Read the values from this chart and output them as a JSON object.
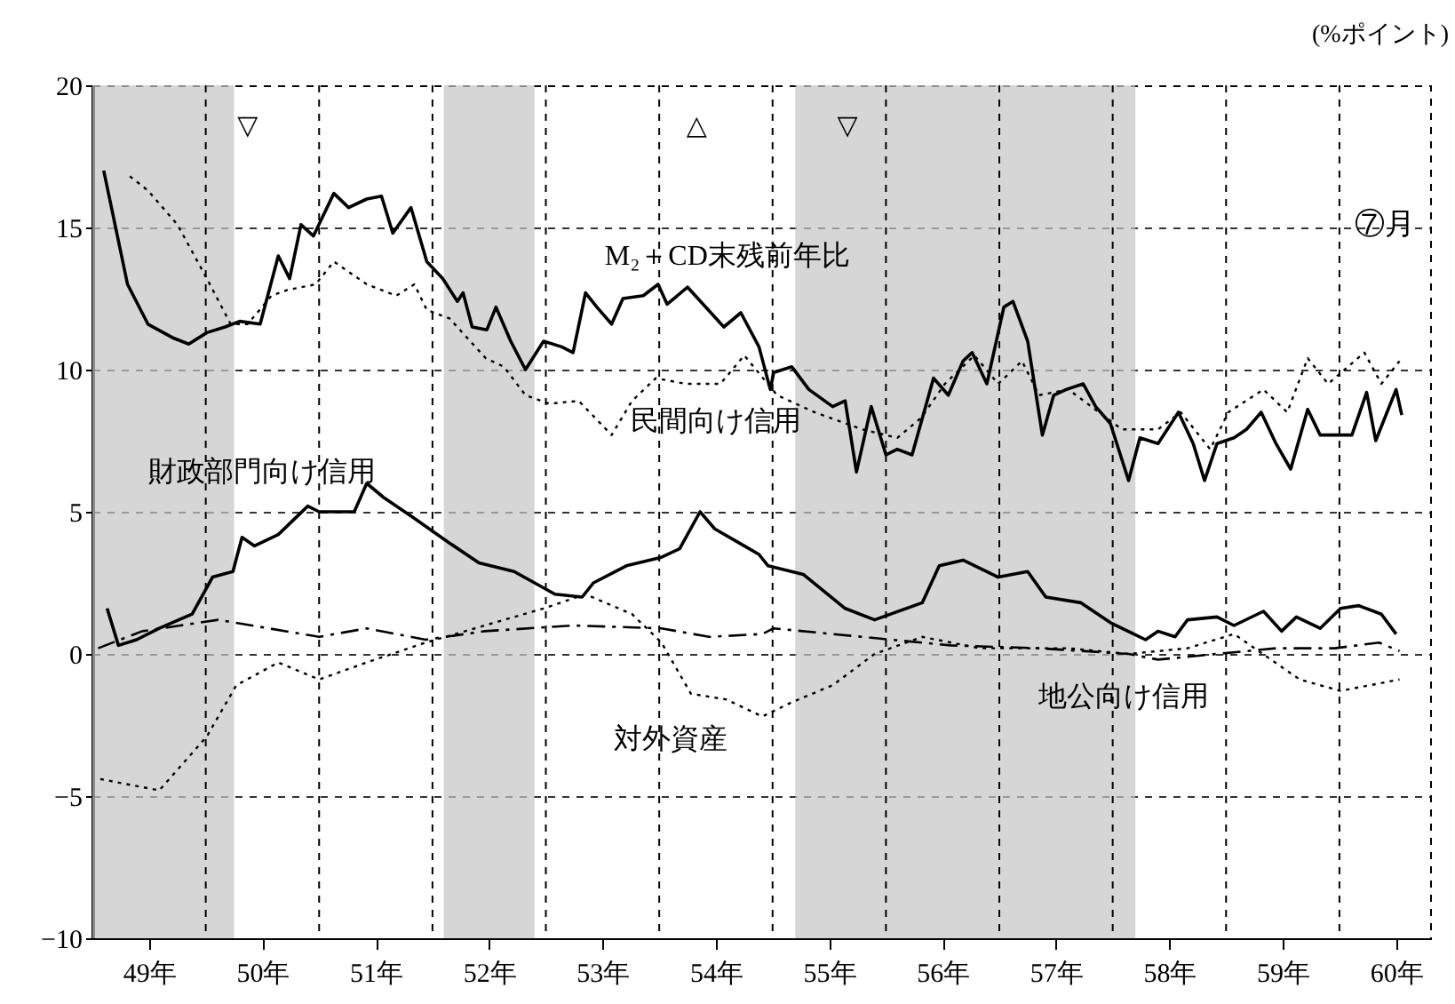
{
  "chart_data": {
    "type": "line",
    "ylabel": "(%ポイント)",
    "xlim": [
      48.5,
      60.3
    ],
    "ylim": [
      -10,
      20
    ],
    "yticks": [
      -10,
      -5,
      0,
      5,
      10,
      15,
      20
    ],
    "xticks": [
      {
        "value": 49,
        "label": "49年"
      },
      {
        "value": 50,
        "label": "50年"
      },
      {
        "value": 51,
        "label": "51年"
      },
      {
        "value": 52,
        "label": "52年"
      },
      {
        "value": 53,
        "label": "53年"
      },
      {
        "value": 54,
        "label": "54年"
      },
      {
        "value": 55,
        "label": "55年"
      },
      {
        "value": 56,
        "label": "56年"
      },
      {
        "value": 57,
        "label": "57年"
      },
      {
        "value": 58,
        "label": "58年"
      },
      {
        "value": 59,
        "label": "59年"
      },
      {
        "value": 60,
        "label": "60年"
      },
      {
        "value": 49.5,
        "label": null
      },
      {
        "value": 50.5,
        "label": null
      },
      {
        "value": 51.5,
        "label": null
      },
      {
        "value": 52.5,
        "label": null
      },
      {
        "value": 53.5,
        "label": null
      },
      {
        "value": 54.5,
        "label": null
      },
      {
        "value": 55.5,
        "label": null
      },
      {
        "value": 56.5,
        "label": null
      },
      {
        "value": 57.5,
        "label": null
      },
      {
        "value": 58.5,
        "label": null
      },
      {
        "value": 59.5,
        "label": null
      }
    ],
    "grid": true,
    "legend": false,
    "series": [
      {
        "name": "M₂＋CD末残前年比",
        "color": "#000000",
        "line_style": "solid",
        "x": [
          48.6,
          48.81,
          48.99,
          49.22,
          49.35,
          49.51,
          49.67,
          49.8,
          49.98,
          50.14,
          50.24,
          50.34,
          50.45,
          50.63,
          50.76,
          50.92,
          51.05,
          51.15,
          51.31,
          51.45,
          51.59,
          51.72,
          51.77,
          51.85,
          51.98,
          52.06,
          52.19,
          52.32,
          52.48,
          52.64,
          52.74,
          52.85,
          52.95,
          53.08,
          53.18,
          53.36,
          53.49,
          53.57,
          53.75,
          54.07,
          54.22,
          54.38,
          54.48,
          54.51,
          54.67,
          54.82,
          55.03,
          55.14,
          55.24,
          55.37,
          55.5,
          55.6,
          55.73,
          55.92,
          56.05,
          56.18,
          56.26,
          56.39,
          56.54,
          56.62,
          56.75,
          56.88,
          56.98,
          57.09,
          57.24,
          57.35,
          57.48,
          57.64,
          57.74,
          57.9,
          58.08,
          58.21,
          58.31,
          58.42,
          58.57,
          58.68,
          58.81,
          58.94,
          59.07,
          59.22,
          59.33,
          59.61,
          59.74,
          59.82,
          60.0,
          60.05
        ],
        "values": [
          17.0,
          13.0,
          11.6,
          11.1,
          10.9,
          11.3,
          11.5,
          11.7,
          11.6,
          14.0,
          13.2,
          15.1,
          14.7,
          16.2,
          15.7,
          16.0,
          16.1,
          14.8,
          15.7,
          13.8,
          13.2,
          12.4,
          12.7,
          11.5,
          11.4,
          12.2,
          11.0,
          10.0,
          11.0,
          10.8,
          10.6,
          12.7,
          12.2,
          11.6,
          12.5,
          12.6,
          13.0,
          12.3,
          12.9,
          11.5,
          12.0,
          10.8,
          9.3,
          9.9,
          10.1,
          9.3,
          8.7,
          8.9,
          6.4,
          8.7,
          7.0,
          7.2,
          7.0,
          9.7,
          9.1,
          10.3,
          10.6,
          9.5,
          12.2,
          12.4,
          11.0,
          7.7,
          9.1,
          9.3,
          9.5,
          8.7,
          8.1,
          6.1,
          7.6,
          7.4,
          8.5,
          7.4,
          6.1,
          7.4,
          7.6,
          7.9,
          8.5,
          7.4,
          6.5,
          8.6,
          7.7,
          7.7,
          9.2,
          7.5,
          9.3,
          8.4
        ]
      },
      {
        "name": "民間向け信用",
        "color": "#000000",
        "line_style": "dotted",
        "x": [
          48.83,
          48.99,
          49.25,
          49.51,
          49.72,
          49.87,
          50.08,
          50.22,
          50.47,
          50.63,
          50.92,
          51.18,
          51.34,
          51.45,
          51.65,
          51.97,
          52.13,
          52.32,
          52.53,
          52.79,
          53.08,
          53.26,
          53.47,
          53.73,
          54.04,
          54.25,
          54.54,
          54.87,
          55.29,
          55.6,
          55.81,
          56.02,
          56.28,
          56.49,
          56.7,
          56.85,
          57.11,
          57.38,
          57.58,
          57.9,
          58.1,
          58.36,
          58.52,
          58.83,
          59.04,
          59.22,
          59.4,
          59.72,
          59.87,
          60.03
        ],
        "values": [
          16.8,
          16.3,
          15.1,
          13.2,
          11.6,
          11.6,
          12.6,
          12.8,
          13.0,
          13.8,
          13.0,
          12.6,
          13.0,
          12.1,
          11.8,
          10.4,
          10.1,
          9.1,
          8.8,
          8.9,
          7.7,
          8.9,
          9.7,
          9.5,
          9.5,
          10.5,
          9.1,
          8.5,
          7.9,
          7.6,
          8.3,
          9.5,
          10.5,
          9.5,
          10.3,
          9.1,
          9.3,
          8.5,
          7.9,
          7.9,
          8.5,
          7.2,
          8.5,
          9.3,
          8.5,
          10.4,
          9.5,
          10.6,
          9.5,
          10.3
        ]
      },
      {
        "name": "財政部門向け信用",
        "color": "#000000",
        "line_style": "solid",
        "x": [
          48.63,
          48.73,
          48.89,
          49.09,
          49.38,
          49.56,
          49.74,
          49.82,
          49.93,
          50.14,
          50.4,
          50.5,
          50.81,
          50.92,
          51.07,
          51.33,
          51.65,
          51.91,
          52.22,
          52.58,
          52.82,
          52.92,
          53.21,
          53.52,
          53.68,
          53.86,
          53.99,
          54.25,
          54.38,
          54.46,
          54.77,
          55.14,
          55.4,
          55.82,
          55.97,
          56.18,
          56.49,
          56.75,
          56.91,
          57.22,
          57.48,
          57.79,
          57.9,
          58.05,
          58.16,
          58.42,
          58.57,
          58.83,
          58.99,
          59.12,
          59.33,
          59.51,
          59.67,
          59.87,
          60.0
        ],
        "values": [
          1.6,
          0.3,
          0.5,
          0.9,
          1.4,
          2.7,
          2.9,
          4.1,
          3.8,
          4.2,
          5.2,
          5.0,
          5.0,
          6.0,
          5.5,
          4.8,
          3.9,
          3.2,
          2.9,
          2.1,
          2.0,
          2.5,
          3.1,
          3.4,
          3.7,
          5.0,
          4.4,
          3.8,
          3.5,
          3.1,
          2.8,
          1.6,
          1.2,
          1.8,
          3.1,
          3.3,
          2.7,
          2.9,
          2.0,
          1.8,
          1.1,
          0.5,
          0.8,
          0.6,
          1.2,
          1.3,
          1.0,
          1.5,
          0.8,
          1.3,
          0.9,
          1.6,
          1.7,
          1.4,
          0.7
        ]
      },
      {
        "name": "対外資産",
        "color": "#000000",
        "line_style": "dotted",
        "x": [
          48.57,
          49.09,
          49.51,
          49.77,
          50.14,
          50.5,
          50.92,
          51.44,
          51.96,
          52.48,
          52.85,
          53.26,
          53.52,
          53.78,
          54.09,
          54.41,
          54.67,
          55.03,
          55.4,
          55.82,
          56.33,
          57.11,
          57.64,
          58.16,
          58.57,
          59.15,
          59.51,
          60.03
        ],
        "values": [
          -4.4,
          -4.8,
          -2.9,
          -1.1,
          -0.3,
          -0.9,
          -0.3,
          0.4,
          1.0,
          1.6,
          2.1,
          1.4,
          0.4,
          -1.4,
          -1.6,
          -2.2,
          -1.7,
          -1.1,
          0.0,
          0.6,
          0.2,
          0.2,
          0.0,
          0.2,
          0.7,
          -0.9,
          -1.3,
          -0.9
        ]
      },
      {
        "name": "地公向け信用",
        "color": "#000000",
        "line_style": "dashed",
        "x": [
          48.55,
          48.94,
          49.61,
          50.5,
          50.92,
          51.44,
          51.96,
          52.74,
          53.52,
          53.94,
          54.41,
          54.51,
          55.29,
          56.07,
          56.85,
          57.64,
          57.9,
          58.42,
          58.94,
          59.46,
          59.85,
          60.03
        ],
        "values": [
          0.2,
          0.8,
          1.2,
          0.6,
          0.9,
          0.5,
          0.8,
          1.0,
          0.9,
          0.6,
          0.7,
          0.9,
          0.6,
          0.3,
          0.2,
          0.0,
          -0.2,
          0.0,
          0.2,
          0.2,
          0.4,
          0.1
        ]
      }
    ],
    "bands": [
      {
        "axis": "x",
        "from": 48.5,
        "to": 49.75,
        "color": "#c4c4c4"
      },
      {
        "axis": "x",
        "from": 51.6,
        "to": 52.4,
        "color": "#c4c4c4"
      },
      {
        "axis": "x",
        "from": 54.7,
        "to": 57.7,
        "color": "#c4c4c4"
      }
    ],
    "annotations": [
      "▽",
      "△",
      "▽",
      "⑦月"
    ]
  }
}
